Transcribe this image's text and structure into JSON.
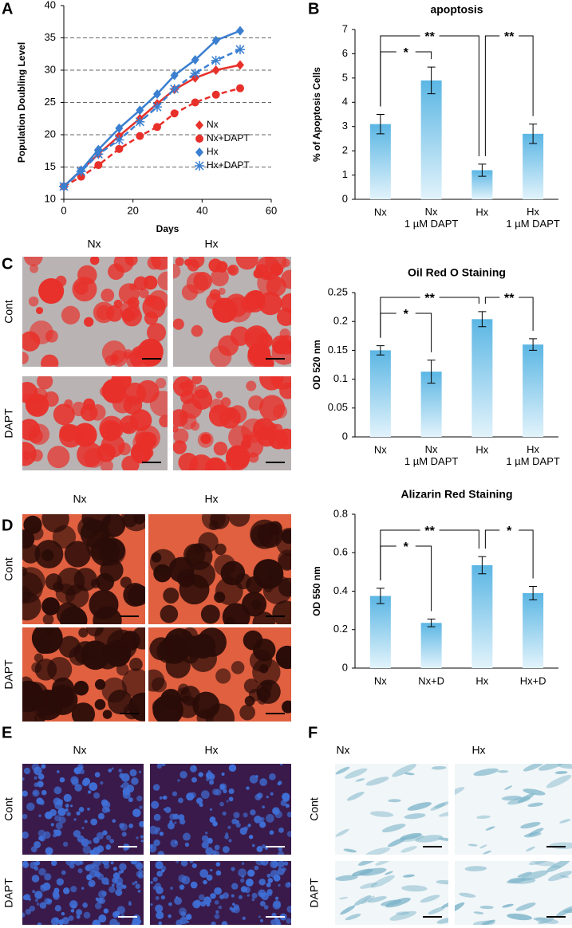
{
  "chart_data": [
    {
      "type": "line",
      "ylabel": "Population Doubling Level",
      "xlabel": "Days",
      "x": [
        0,
        5,
        10,
        16,
        22,
        27,
        32,
        38,
        44,
        51
      ],
      "xlim": [
        0,
        60
      ],
      "xticks": [
        0,
        20,
        40,
        60
      ],
      "ylim": [
        10,
        40
      ],
      "yticks": [
        10,
        15,
        20,
        25,
        30,
        35,
        40
      ],
      "grid": true,
      "legend": "right",
      "series": [
        {
          "name": "Nx",
          "color": "#e8302a",
          "marker": "diamond",
          "line_style": "solid",
          "values": [
            12,
            14.5,
            17,
            19.8,
            22.5,
            24.8,
            27,
            28.8,
            30,
            30.8
          ]
        },
        {
          "name": "Nx+DAPT",
          "color": "#e8302a",
          "marker": "circle",
          "line_style": "dashed",
          "values": [
            12,
            13.5,
            15.3,
            17.8,
            19.8,
            21.2,
            23.3,
            25,
            26.2,
            27.2
          ]
        },
        {
          "name": "Hx",
          "color": "#3a7fd0",
          "marker": "diamond",
          "line_style": "solid",
          "values": [
            12,
            14.5,
            17.7,
            21,
            23.8,
            26.3,
            29.2,
            31.6,
            34.6,
            36.1
          ]
        },
        {
          "name": "Hx+DAPT",
          "color": "#3a7fd0",
          "marker": "asterisk",
          "line_style": "dashed",
          "values": [
            12,
            14.3,
            17,
            19.2,
            22,
            24.3,
            27.1,
            29.5,
            31.5,
            33.2
          ]
        }
      ]
    },
    {
      "type": "bar",
      "title": "apoptosis",
      "ylabel": "% of Apoptosis Cells",
      "categories": [
        "Nx",
        "Nx\n1 µM DAPT",
        "Hx",
        "Hx\n1 µM DAPT"
      ],
      "values": [
        3.1,
        4.9,
        1.2,
        2.7
      ],
      "errors": [
        0.4,
        0.55,
        0.25,
        0.4
      ],
      "ylim": [
        0,
        7
      ],
      "yticks": [
        0,
        1,
        2,
        3,
        4,
        5,
        6,
        7
      ],
      "color": "#5bb6e4",
      "annotations": [
        "**",
        "**",
        "*"
      ]
    },
    {
      "type": "bar",
      "title": "Oil Red O Staining",
      "ylabel": "OD 520 nm",
      "categories": [
        "Nx",
        "Nx\n1 µM DAPT",
        "Hx",
        "Hx\n1 µM DAPT"
      ],
      "values": [
        0.15,
        0.113,
        0.204,
        0.16
      ],
      "errors": [
        0.008,
        0.02,
        0.013,
        0.01
      ],
      "ylim": [
        0,
        0.25
      ],
      "yticks": [
        0,
        0.05,
        0.1,
        0.15,
        0.2,
        0.25
      ],
      "color": "#5bb6e4",
      "annotations": [
        "**",
        "**",
        "*"
      ]
    },
    {
      "type": "bar",
      "title": "Alizarin Red Staining",
      "ylabel": "OD 550 nm",
      "categories": [
        "Nx",
        "Nx+D",
        "Hx",
        "Hx+D"
      ],
      "values": [
        0.375,
        0.235,
        0.535,
        0.39
      ],
      "errors": [
        0.04,
        0.02,
        0.045,
        0.035
      ],
      "ylim": [
        0,
        0.8
      ],
      "yticks": [
        0,
        0.2,
        0.4,
        0.6,
        0.8
      ],
      "color": "#5bb6e4",
      "annotations": [
        "**",
        "*",
        "*"
      ]
    }
  ],
  "panel_labels": [
    "A",
    "B",
    "C",
    "D",
    "E",
    "F"
  ],
  "image_panels": [
    {
      "columns": [
        "Nx",
        "Hx"
      ],
      "rows": [
        "Cont",
        "DAPT"
      ]
    },
    {
      "columns": [
        "Nx",
        "Hx"
      ],
      "rows": [
        "Cont",
        "DAPT"
      ]
    },
    {
      "columns": [
        "Nx",
        "Hx"
      ],
      "rows": [
        "Cont",
        "DAPT"
      ]
    },
    {
      "columns": [
        "Nx",
        "Hx"
      ],
      "rows": [
        "Cont",
        "DAPT"
      ]
    }
  ]
}
